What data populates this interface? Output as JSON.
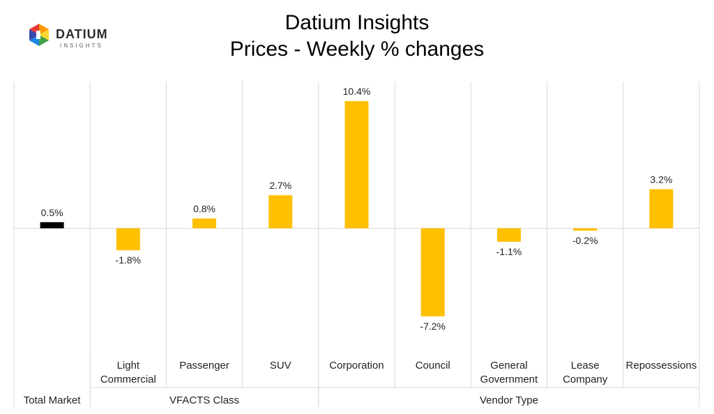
{
  "header": {
    "title": "Datium Insights",
    "subtitle": "Prices - Weekly % changes"
  },
  "logo": {
    "word": "DATIUM",
    "sub": "INSIGHTS"
  },
  "colors": {
    "highlight": "#000000",
    "bar": "#ffc000",
    "grid": "#d9d9d9",
    "text": "#222222"
  },
  "chart_data": {
    "type": "bar",
    "categories": [
      "",
      "Light Commercial",
      "Passenger",
      "SUV",
      "Corporation",
      "Council",
      "General Government",
      "Lease Company",
      "Repossessions"
    ],
    "category_lines": [
      [],
      [
        "Light",
        "Commercial"
      ],
      [
        "Passenger"
      ],
      [
        "SUV"
      ],
      [
        "Corporation"
      ],
      [
        "Council"
      ],
      [
        "General",
        "Government"
      ],
      [
        "Lease",
        "Company"
      ],
      [
        "Repossessions"
      ]
    ],
    "groups": [
      {
        "label": "Total Market",
        "categories": [
          ""
        ]
      },
      {
        "label": "VFACTS Class",
        "categories": [
          "Light Commercial",
          "Passenger",
          "SUV"
        ]
      },
      {
        "label": "Vendor Type",
        "categories": [
          "Corporation",
          "Council",
          "General Government",
          "Lease Company",
          "Repossessions"
        ]
      }
    ],
    "series": [
      {
        "values": [
          0.5,
          -1.8,
          0.8,
          2.7,
          10.4,
          -7.2,
          -1.1,
          -0.2,
          3.2
        ]
      }
    ],
    "data_labels": [
      "0.5%",
      "-1.8%",
      "0.8%",
      "2.7%",
      "10.4%",
      "-7.2%",
      "-1.1%",
      "-0.2%",
      "3.2%"
    ],
    "highlight_index": 0,
    "ylim": [
      -10.0,
      12.0
    ],
    "grid": false
  }
}
